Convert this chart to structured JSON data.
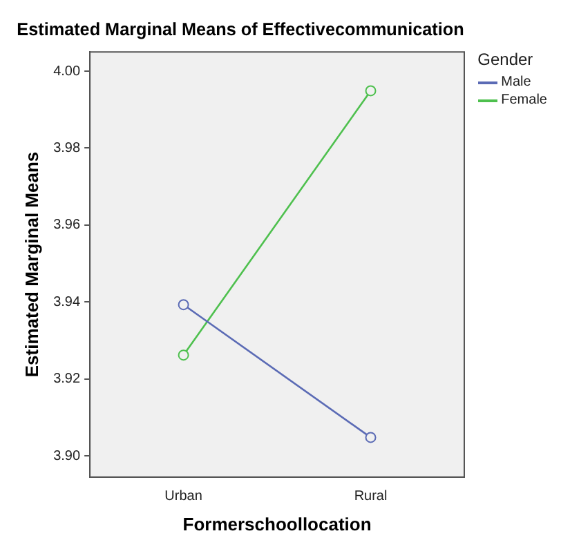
{
  "chart_data": {
    "type": "line",
    "title": "Estimated Marginal Means of Effectivecommunication",
    "xlabel": "Formerschoollocation",
    "ylabel": "Estimated Marginal Means",
    "legend_title": "Gender",
    "categories": [
      "Urban",
      "Rural"
    ],
    "series": [
      {
        "name": "Male",
        "color": "#5b6bb5",
        "values": [
          3.9393,
          3.9048
        ]
      },
      {
        "name": "Female",
        "color": "#4ec04e",
        "values": [
          3.9262,
          3.9949
        ]
      }
    ],
    "ylim": [
      3.8945,
      4.005
    ],
    "yticks": [
      {
        "value": 3.9,
        "label": "3.90"
      },
      {
        "value": 3.92,
        "label": "3.92"
      },
      {
        "value": 3.94,
        "label": "3.94"
      },
      {
        "value": 3.96,
        "label": "3.96"
      },
      {
        "value": 3.98,
        "label": "3.98"
      },
      {
        "value": 4.0,
        "label": "4.00"
      }
    ],
    "grid": false,
    "legend": "top right",
    "marker": "circle",
    "line_style": "solid"
  }
}
